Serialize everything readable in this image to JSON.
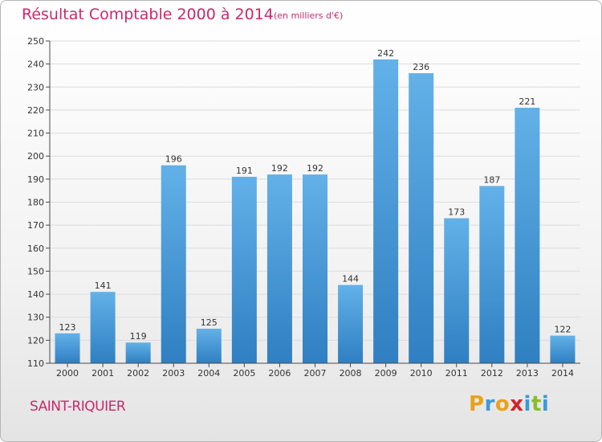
{
  "header": {
    "title": "Résultat Comptable 2000 à 2014",
    "subtitle": "(en milliers d'€)"
  },
  "footer": {
    "city": "SAINT-RIQUIER",
    "logo_letters": [
      "P",
      "r",
      "o",
      "x",
      "i",
      "t",
      "i"
    ],
    "logo_colors": [
      "#e8a21b",
      "#3a9ad9",
      "#e8a21b",
      "#d5232c",
      "#3a9ad9",
      "#8cbc2a",
      "#3a9ad9"
    ]
  },
  "colors": {
    "bar_light": "#63b1e8",
    "bar_dark": "#2f7fc2",
    "accent": "#c8296e",
    "grid": "#dcdcdc",
    "axis": "#4a4a4a"
  },
  "chart_data": {
    "type": "bar",
    "categories": [
      "2000",
      "2001",
      "2002",
      "2003",
      "2004",
      "2005",
      "2006",
      "2007",
      "2008",
      "2009",
      "2010",
      "2011",
      "2012",
      "2013",
      "2014"
    ],
    "values": [
      123,
      141,
      119,
      196,
      125,
      191,
      192,
      192,
      144,
      242,
      236,
      173,
      187,
      221,
      122
    ],
    "labels": [
      "123",
      "141",
      "119",
      "196",
      "125",
      "191",
      "192",
      "192",
      "144",
      "242",
      "236",
      "173",
      "187",
      "221",
      "122"
    ],
    "ylim": [
      110,
      250
    ],
    "yticks": [
      110,
      120,
      130,
      140,
      150,
      160,
      170,
      180,
      190,
      200,
      210,
      220,
      230,
      240,
      250
    ],
    "ytick_labels": [
      "110",
      "120",
      "130",
      "140",
      "150",
      "160",
      "170",
      "180",
      "190",
      "200",
      "210",
      "220",
      "230",
      "240",
      "250"
    ],
    "grid": true,
    "title": "Résultat Comptable 2000 à 2014",
    "subtitle": "(en milliers d'€)",
    "xlabel": "",
    "ylabel": ""
  }
}
